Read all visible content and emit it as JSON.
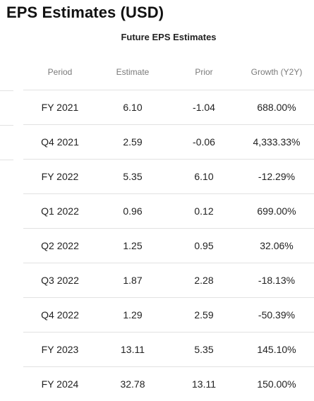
{
  "page_title": "EPS Estimates (USD)",
  "table": {
    "title": "Future EPS Estimates",
    "headers": {
      "period": "Period",
      "estimate": "Estimate",
      "prior": "Prior",
      "growth": "Growth (Y2Y)"
    },
    "rows": [
      {
        "period": "FY 2021",
        "estimate": "6.10",
        "prior": "-1.04",
        "growth": "688.00%",
        "trend": "positive"
      },
      {
        "period": "Q4 2021",
        "estimate": "2.59",
        "prior": "-0.06",
        "growth": "4,333.33%",
        "trend": "positive"
      },
      {
        "period": "FY 2022",
        "estimate": "5.35",
        "prior": "6.10",
        "growth": "-12.29%",
        "trend": "negative"
      },
      {
        "period": "Q1 2022",
        "estimate": "0.96",
        "prior": "0.12",
        "growth": "699.00%",
        "trend": "positive"
      },
      {
        "period": "Q2 2022",
        "estimate": "1.25",
        "prior": "0.95",
        "growth": "32.06%",
        "trend": "positive"
      },
      {
        "period": "Q3 2022",
        "estimate": "1.87",
        "prior": "2.28",
        "growth": "-18.13%",
        "trend": "negative"
      },
      {
        "period": "Q4 2022",
        "estimate": "1.29",
        "prior": "2.59",
        "growth": "-50.39%",
        "trend": "negative"
      },
      {
        "period": "FY 2023",
        "estimate": "13.11",
        "prior": "5.35",
        "growth": "145.10%",
        "trend": "positive"
      },
      {
        "period": "FY 2024",
        "estimate": "32.78",
        "prior": "13.11",
        "growth": "150.00%",
        "trend": "positive"
      }
    ]
  },
  "colors": {
    "positive": "#2db563",
    "negative": "#e0464d"
  }
}
